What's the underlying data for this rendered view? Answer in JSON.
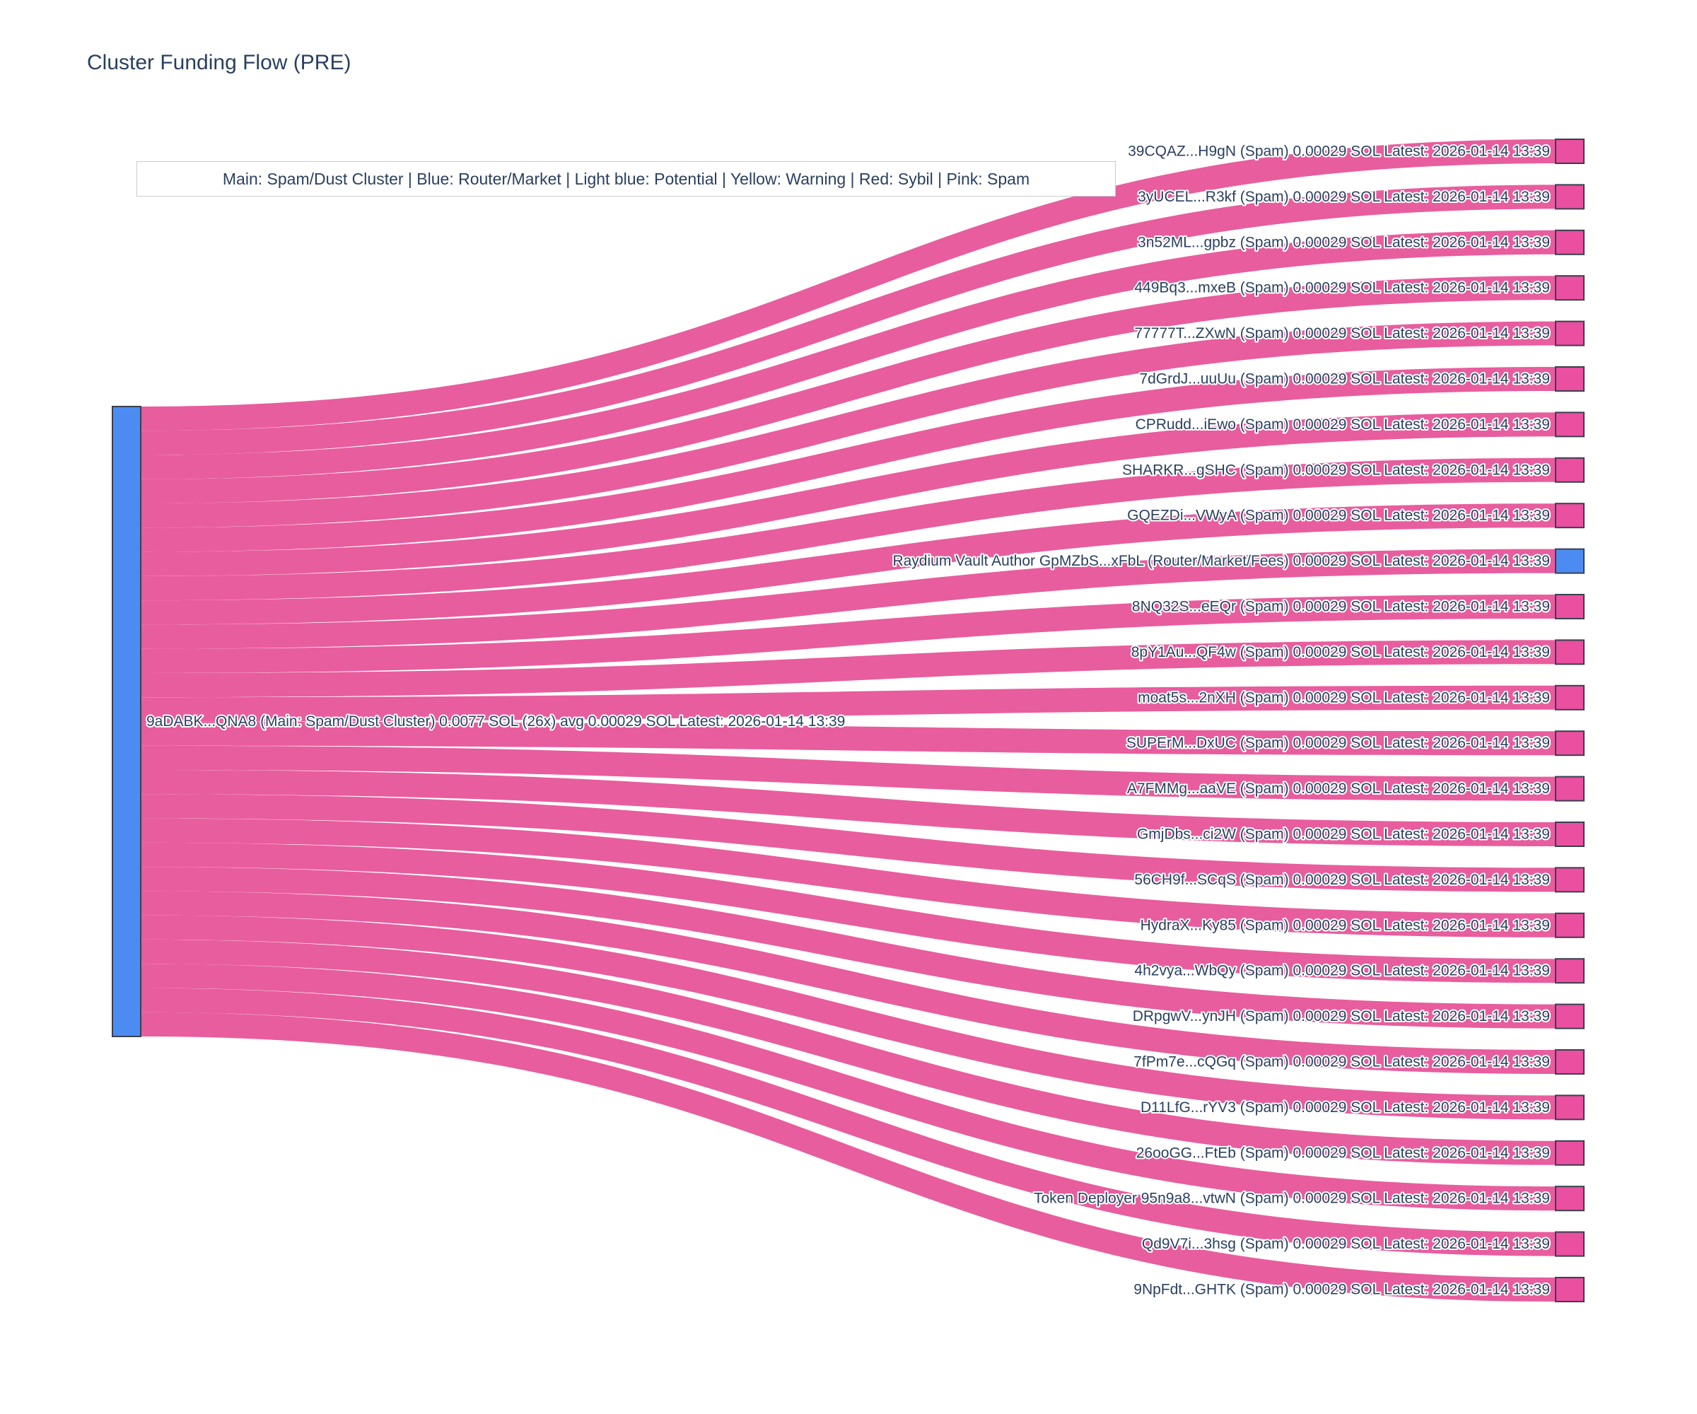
{
  "header": {
    "title": "Cluster Funding Flow (PRE)"
  },
  "legend": {
    "text": "Main: Spam/Dust Cluster  |  Blue: Router/Market | Light blue: Potential | Yellow: Warning | Red: Sybil | Pink: Spam"
  },
  "colors": {
    "text": "#2a3f5f",
    "link": "#e85d9e",
    "spam_node": "#ea4fa0",
    "router_node": "#4c8cf2",
    "main_node": "#4c8cf2",
    "node_border": "#39404f",
    "legend_border": "#c8ccd4",
    "background": "#ffffff"
  },
  "chart_data": {
    "type": "sankey",
    "title": "Cluster Funding Flow (PRE)",
    "units": "SOL",
    "source": {
      "label": "9aDABK...QNA8 (Main: Spam/Dust Cluster) 0.0077 SOL (26x) avg 0.00029 SOL Latest: 2026-01-14 13:39",
      "address_short": "9aDABK...QNA8",
      "category": "Main: Spam/Dust Cluster",
      "total_sol": 0.0077,
      "tx_count": 26,
      "avg_sol": 0.00029,
      "latest": "2026-01-14 13:39"
    },
    "link_value_sol": 0.00029,
    "latest": "2026-01-14 13:39",
    "targets": [
      {
        "label": "39CQAZ...H9gN (Spam) 0.00029 SOL Latest: 2026-01-14 13:39",
        "type": "spam",
        "value": 0.00029
      },
      {
        "label": "3yUCEL...R3kf (Spam) 0.00029 SOL Latest: 2026-01-14 13:39",
        "type": "spam",
        "value": 0.00029
      },
      {
        "label": "3n52ML...gpbz (Spam) 0.00029 SOL Latest: 2026-01-14 13:39",
        "type": "spam",
        "value": 0.00029
      },
      {
        "label": "449Bq3...mxeB (Spam) 0.00029 SOL Latest: 2026-01-14 13:39",
        "type": "spam",
        "value": 0.00029
      },
      {
        "label": "77777T...ZXwN (Spam) 0.00029 SOL Latest: 2026-01-14 13:39",
        "type": "spam",
        "value": 0.00029
      },
      {
        "label": "7dGrdJ...uuUu (Spam) 0.00029 SOL Latest: 2026-01-14 13:39",
        "type": "spam",
        "value": 0.00029
      },
      {
        "label": "CPRudd...iEwo (Spam) 0.00029 SOL Latest: 2026-01-14 13:39",
        "type": "spam",
        "value": 0.00029
      },
      {
        "label": "SHARKR...gSHC (Spam) 0.00029 SOL Latest: 2026-01-14 13:39",
        "type": "spam",
        "value": 0.00029
      },
      {
        "label": "GQEZDi...VWyA (Spam) 0.00029 SOL Latest: 2026-01-14 13:39",
        "type": "spam",
        "value": 0.00029
      },
      {
        "label": "Raydium Vault Author GpMZbS...xFbL (Router/Market/Fees) 0.00029 SOL Latest: 2026-01-14 13:39",
        "type": "router",
        "value": 0.00029
      },
      {
        "label": "8NQ32S...eEQr (Spam) 0.00029 SOL Latest: 2026-01-14 13:39",
        "type": "spam",
        "value": 0.00029
      },
      {
        "label": "8pY1Au...QF4w (Spam) 0.00029 SOL Latest: 2026-01-14 13:39",
        "type": "spam",
        "value": 0.00029
      },
      {
        "label": "moat5s...2nXH (Spam) 0.00029 SOL Latest: 2026-01-14 13:39",
        "type": "spam",
        "value": 0.00029
      },
      {
        "label": "SUPErM...DxUC (Spam) 0.00029 SOL Latest: 2026-01-14 13:39",
        "type": "spam",
        "value": 0.00029
      },
      {
        "label": "A7FMMg...aaVE (Spam) 0.00029 SOL Latest: 2026-01-14 13:39",
        "type": "spam",
        "value": 0.00029
      },
      {
        "label": "GmjDbs...ci2W (Spam) 0.00029 SOL Latest: 2026-01-14 13:39",
        "type": "spam",
        "value": 0.00029
      },
      {
        "label": "56CH9f...SCqS (Spam) 0.00029 SOL Latest: 2026-01-14 13:39",
        "type": "spam",
        "value": 0.00029
      },
      {
        "label": "HydraX...Ky85 (Spam) 0.00029 SOL Latest: 2026-01-14 13:39",
        "type": "spam",
        "value": 0.00029
      },
      {
        "label": "4h2vya...WbQy (Spam) 0.00029 SOL Latest: 2026-01-14 13:39",
        "type": "spam",
        "value": 0.00029
      },
      {
        "label": "DRpgwV...ynJH (Spam) 0.00029 SOL Latest: 2026-01-14 13:39",
        "type": "spam",
        "value": 0.00029
      },
      {
        "label": "7fPm7e...cQGq (Spam) 0.00029 SOL Latest: 2026-01-14 13:39",
        "type": "spam",
        "value": 0.00029
      },
      {
        "label": "D11LfG...rYV3 (Spam) 0.00029 SOL Latest: 2026-01-14 13:39",
        "type": "spam",
        "value": 0.00029
      },
      {
        "label": "26ooGG...FtEb (Spam) 0.00029 SOL Latest: 2026-01-14 13:39",
        "type": "spam",
        "value": 0.00029
      },
      {
        "label": "Token Deployer 95n9a8...vtwN (Spam) 0.00029 SOL Latest: 2026-01-14 13:39",
        "type": "spam",
        "value": 0.00029
      },
      {
        "label": "Qd9V7i...3hsg (Spam) 0.00029 SOL Latest: 2026-01-14 13:39",
        "type": "spam",
        "value": 0.00029
      },
      {
        "label": "9NpFdt...GHTK (Spam) 0.00029 SOL Latest: 2026-01-14 13:39",
        "type": "spam",
        "value": 0.00029
      }
    ]
  }
}
